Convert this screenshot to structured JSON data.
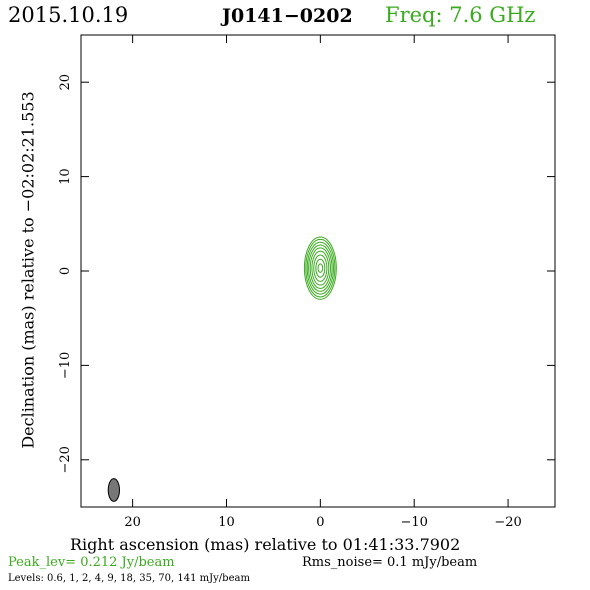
{
  "header": {
    "date": "2015.10.19",
    "source": "J0141−0202",
    "freq": "Freq:  7.6  GHz"
  },
  "colors": {
    "contour": "#3aaa1e",
    "axes": "#000000",
    "beam_fill": "#777777",
    "text_green": "#3aaa1e"
  },
  "chart_data": {
    "type": "contour",
    "title": "J0141−0202",
    "xlabel": "Right ascension (mas) relative to 01:41:33.7902",
    "ylabel": "Declination (mas) relative to −02:02:21.553",
    "xlim": [
      25.5,
      -25
    ],
    "ylim": [
      -25,
      25
    ],
    "xticks": [
      20,
      10,
      0,
      -10,
      -20
    ],
    "yticks": [
      20,
      10,
      0,
      -10,
      -20
    ],
    "xtick_labels": [
      "20",
      "10",
      "0",
      "−10",
      "−20"
    ],
    "ytick_labels": [
      "20",
      "10",
      "0",
      "−10",
      "−20"
    ],
    "peak_label": "Peak_lev=  0.212 Jy/beam",
    "rms_label": "Rms_noise=  0.1 mJy/beam",
    "levels_label": "Levels: 0.6,    1,    2,    4,    9,   18,   35,   70, 141 mJy/beam",
    "contour_levels_mjy": [
      0.6,
      1,
      2,
      4,
      9,
      18,
      35,
      70,
      141
    ],
    "source_center": [
      0,
      0.3
    ],
    "contours": [
      {
        "level": 0.6,
        "a": 1.7,
        "b": 3.3
      },
      {
        "level": 1,
        "a": 1.55,
        "b": 3.05
      },
      {
        "level": 2,
        "a": 1.4,
        "b": 2.75
      },
      {
        "level": 4,
        "a": 1.25,
        "b": 2.45
      },
      {
        "level": 9,
        "a": 1.08,
        "b": 2.15
      },
      {
        "level": 18,
        "a": 0.9,
        "b": 1.8
      },
      {
        "level": 35,
        "a": 0.7,
        "b": 1.4
      },
      {
        "level": 70,
        "a": 0.48,
        "b": 0.95
      },
      {
        "level": 141,
        "a": 0.25,
        "b": 0.45
      }
    ],
    "beam": {
      "x": 22.0,
      "y": -23.2,
      "a": 0.6,
      "b": 1.2
    }
  }
}
